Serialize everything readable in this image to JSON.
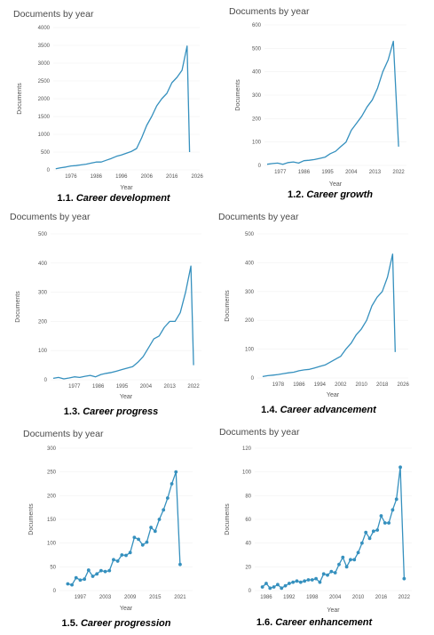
{
  "colors": {
    "series": "#3590be",
    "grid": "#f0f0f0"
  },
  "chart_data": [
    {
      "type": "line",
      "title": "Documents by year",
      "xlabel": "Year",
      "ylabel": "Documents",
      "caption_number": "1.1.",
      "caption_name": "Career development",
      "xlim": [
        1969,
        2027
      ],
      "ylim": [
        0,
        4000
      ],
      "x_ticks": [
        1976,
        1986,
        1996,
        2006,
        2016,
        2026
      ],
      "y_ticks": [
        0,
        500,
        1000,
        1500,
        2000,
        2500,
        3000,
        3500,
        4000
      ],
      "markers": false,
      "series": [
        {
          "x": [
            1970,
            1972,
            1974,
            1976,
            1978,
            1980,
            1982,
            1984,
            1986,
            1988,
            1990,
            1992,
            1994,
            1996,
            1998,
            2000,
            2002,
            2004,
            2006,
            2008,
            2010,
            2012,
            2014,
            2016,
            2018,
            2020,
            2022,
            2023
          ],
          "y": [
            30,
            60,
            80,
            110,
            120,
            140,
            160,
            190,
            220,
            220,
            270,
            320,
            380,
            420,
            470,
            520,
            600,
            900,
            1250,
            1500,
            1800,
            2000,
            2150,
            2450,
            2600,
            2800,
            3480,
            500
          ]
        }
      ]
    },
    {
      "type": "line",
      "title": "Documents by year",
      "xlabel": "Year",
      "ylabel": "Documents",
      "caption_number": "1.2.",
      "caption_name": "Career growth",
      "xlim": [
        1971,
        2025
      ],
      "ylim": [
        0,
        600
      ],
      "x_ticks": [
        1977,
        1986,
        1995,
        2004,
        2013,
        2022
      ],
      "y_ticks": [
        0,
        100,
        200,
        300,
        400,
        500,
        600
      ],
      "markers": false,
      "series": [
        {
          "x": [
            1972,
            1974,
            1976,
            1978,
            1980,
            1982,
            1984,
            1986,
            1988,
            1990,
            1992,
            1994,
            1996,
            1998,
            2000,
            2002,
            2004,
            2006,
            2008,
            2010,
            2012,
            2014,
            2016,
            2018,
            2020,
            2022
          ],
          "y": [
            5,
            8,
            10,
            5,
            12,
            15,
            10,
            20,
            22,
            25,
            30,
            35,
            50,
            60,
            80,
            100,
            150,
            180,
            210,
            250,
            280,
            330,
            400,
            450,
            530,
            80
          ]
        }
      ]
    },
    {
      "type": "line",
      "title": "Documents by year",
      "xlabel": "Year",
      "ylabel": "Documents",
      "caption_number": "1.3.",
      "caption_name": "Career progress",
      "xlim": [
        1968,
        2025
      ],
      "ylim": [
        0,
        500
      ],
      "x_ticks": [
        1977,
        1986,
        1995,
        2004,
        2013,
        2022
      ],
      "y_ticks": [
        0,
        100,
        200,
        300,
        400,
        500
      ],
      "markers": false,
      "series": [
        {
          "x": [
            1969,
            1971,
            1973,
            1975,
            1977,
            1979,
            1981,
            1983,
            1985,
            1987,
            1989,
            1991,
            1993,
            1995,
            1997,
            1999,
            2001,
            2003,
            2005,
            2007,
            2009,
            2011,
            2013,
            2015,
            2017,
            2019,
            2021,
            2022
          ],
          "y": [
            5,
            8,
            3,
            6,
            10,
            8,
            12,
            15,
            10,
            18,
            22,
            25,
            30,
            35,
            40,
            45,
            60,
            80,
            110,
            140,
            150,
            180,
            200,
            200,
            230,
            300,
            390,
            50
          ]
        }
      ]
    },
    {
      "type": "line",
      "title": "Documents by year",
      "xlabel": "Year",
      "ylabel": "Documents",
      "caption_number": "1.4.",
      "caption_name": "Career advancement",
      "xlim": [
        1970,
        2028
      ],
      "ylim": [
        0,
        500
      ],
      "x_ticks": [
        1978,
        1986,
        1994,
        2002,
        2010,
        2018,
        2026
      ],
      "y_ticks": [
        0,
        100,
        200,
        300,
        400,
        500
      ],
      "markers": false,
      "series": [
        {
          "x": [
            1972,
            1974,
            1976,
            1978,
            1980,
            1982,
            1984,
            1986,
            1988,
            1990,
            1992,
            1994,
            1996,
            1998,
            2000,
            2002,
            2004,
            2006,
            2008,
            2010,
            2012,
            2014,
            2016,
            2018,
            2020,
            2022,
            2023
          ],
          "y": [
            5,
            8,
            10,
            12,
            15,
            18,
            20,
            25,
            28,
            30,
            35,
            40,
            45,
            55,
            65,
            75,
            100,
            120,
            150,
            170,
            200,
            250,
            280,
            300,
            350,
            430,
            90
          ]
        }
      ]
    },
    {
      "type": "line",
      "title": "Documents by year",
      "xlabel": "Year",
      "ylabel": "Documents",
      "caption_number": "1.5.",
      "caption_name": "Career progression",
      "xlim": [
        1992,
        2024
      ],
      "ylim": [
        0,
        300
      ],
      "x_ticks": [
        1997,
        2003,
        2009,
        2015,
        2021
      ],
      "y_ticks": [
        0,
        50,
        100,
        150,
        200,
        250,
        300
      ],
      "markers": true,
      "series": [
        {
          "x": [
            1994,
            1995,
            1996,
            1997,
            1998,
            1999,
            2000,
            2001,
            2002,
            2003,
            2004,
            2005,
            2006,
            2007,
            2008,
            2009,
            2010,
            2011,
            2012,
            2013,
            2014,
            2015,
            2016,
            2017,
            2018,
            2019,
            2020,
            2021
          ],
          "y": [
            14,
            12,
            27,
            22,
            24,
            43,
            30,
            35,
            42,
            40,
            42,
            65,
            62,
            75,
            74,
            80,
            112,
            108,
            96,
            102,
            133,
            125,
            150,
            170,
            195,
            225,
            250,
            55
          ]
        }
      ]
    },
    {
      "type": "line",
      "title": "Documents by year",
      "xlabel": "Year",
      "ylabel": "Documents",
      "caption_number": "1.6.",
      "caption_name": "Career enhancement",
      "xlim": [
        1983,
        2024
      ],
      "ylim": [
        0,
        120
      ],
      "x_ticks": [
        1986,
        1992,
        1998,
        2004,
        2010,
        2016,
        2022
      ],
      "y_ticks": [
        0,
        20,
        40,
        60,
        80,
        100,
        120
      ],
      "markers": true,
      "series": [
        {
          "x": [
            1985,
            1986,
            1987,
            1988,
            1989,
            1990,
            1991,
            1992,
            1993,
            1994,
            1995,
            1996,
            1997,
            1998,
            1999,
            2000,
            2001,
            2002,
            2003,
            2004,
            2005,
            2006,
            2007,
            2008,
            2009,
            2010,
            2011,
            2012,
            2013,
            2014,
            2015,
            2016,
            2017,
            2018,
            2019,
            2020,
            2021,
            2022
          ],
          "y": [
            3,
            6,
            2,
            3,
            5,
            2,
            4,
            6,
            7,
            8,
            7,
            8,
            9,
            9,
            10,
            7,
            14,
            13,
            16,
            15,
            22,
            28,
            20,
            26,
            26,
            32,
            40,
            49,
            44,
            50,
            51,
            63,
            57,
            57,
            68,
            77,
            104,
            10
          ]
        }
      ]
    }
  ]
}
